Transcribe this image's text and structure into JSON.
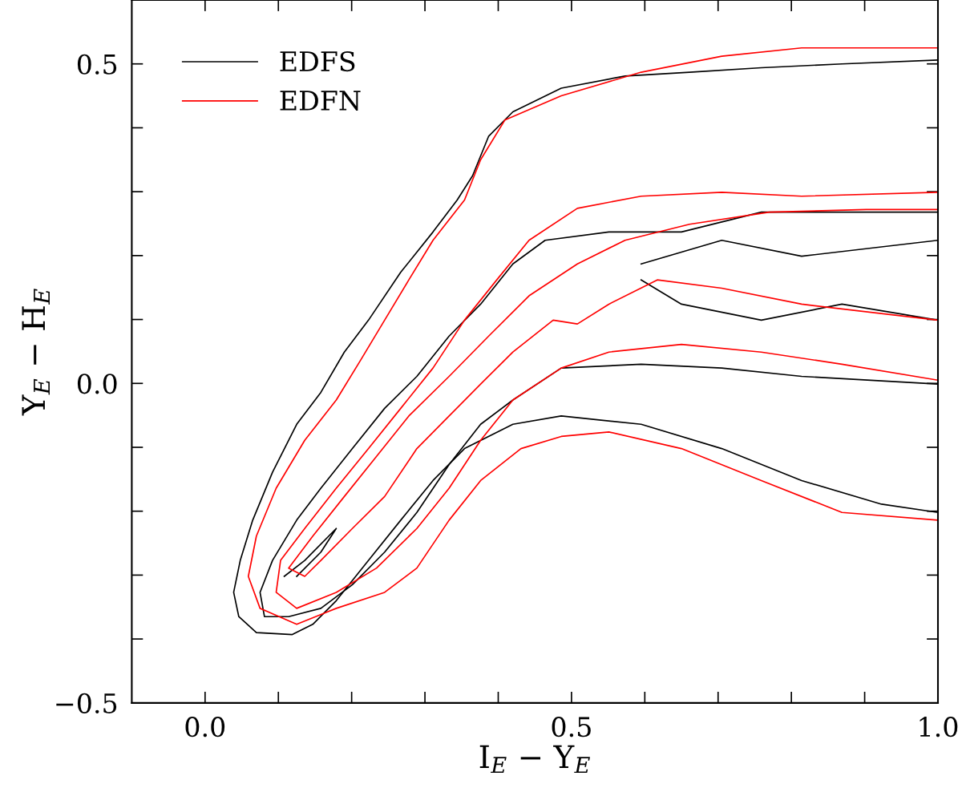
{
  "chart_data": {
    "type": "line",
    "xlabel": "I$_{E}$ − Y$_{E}$",
    "ylabel": "Y$_{E}$ − H$_{E}$",
    "xlim": [
      -0.1,
      1.0
    ],
    "ylim": [
      -0.5,
      0.6
    ],
    "xticks": [
      {
        "value": 0.0,
        "label": "0.0"
      },
      {
        "value": 0.1,
        "label": null
      },
      {
        "value": 0.2,
        "label": null
      },
      {
        "value": 0.3,
        "label": null
      },
      {
        "value": 0.4,
        "label": null
      },
      {
        "value": 0.5,
        "label": "0.5"
      },
      {
        "value": 0.6,
        "label": null
      },
      {
        "value": 0.7,
        "label": null
      },
      {
        "value": 0.8,
        "label": null
      },
      {
        "value": 0.9,
        "label": null
      },
      {
        "value": 1.0,
        "label": "1.0"
      }
    ],
    "yticks": [
      {
        "value": -0.5,
        "label": "−0.5"
      },
      {
        "value": -0.4,
        "label": null
      },
      {
        "value": -0.3,
        "label": null
      },
      {
        "value": -0.2,
        "label": null
      },
      {
        "value": -0.1,
        "label": null
      },
      {
        "value": 0.0,
        "label": "0.0"
      },
      {
        "value": 0.1,
        "label": null
      },
      {
        "value": 0.2,
        "label": null
      },
      {
        "value": 0.3,
        "label": null
      },
      {
        "value": 0.4,
        "label": null
      },
      {
        "value": 0.5,
        "label": "0.5"
      }
    ],
    "grid": false,
    "legend": "top left",
    "marker": "none",
    "line_style": "solid",
    "series": [
      {
        "name": "EDFS",
        "color": "#000000",
        "x": [
          1.0,
          0.923,
          0.814,
          0.705,
          0.595,
          0.486,
          0.42,
          0.354,
          0.311,
          0.267,
          0.223,
          0.179,
          0.147,
          0.119,
          0.07,
          0.046,
          0.039,
          0.048,
          0.065,
          0.092,
          0.125,
          0.158,
          0.19,
          0.223,
          0.267,
          0.311,
          0.344,
          0.365,
          0.387,
          0.42,
          0.486,
          0.573,
          0.661,
          0.759,
          0.869,
          1.0
        ],
        "values": [
          -0.202,
          -0.189,
          -0.152,
          -0.102,
          -0.064,
          -0.051,
          -0.064,
          -0.102,
          -0.152,
          -0.214,
          -0.277,
          -0.34,
          -0.377,
          -0.393,
          -0.39,
          -0.365,
          -0.327,
          -0.277,
          -0.214,
          -0.139,
          -0.064,
          -0.014,
          0.049,
          0.099,
          0.174,
          0.237,
          0.287,
          0.325,
          0.387,
          0.425,
          0.462,
          0.481,
          0.487,
          0.494,
          0.5,
          0.506
        ]
      },
      {
        "color": "#000000",
        "x": [
          1.0,
          0.814,
          0.705,
          0.595,
          0.486,
          0.42,
          0.376,
          0.333,
          0.289,
          0.245,
          0.201,
          0.158,
          0.114,
          0.081,
          0.075,
          0.092,
          0.125,
          0.158,
          0.201,
          0.245,
          0.289,
          0.333,
          0.376,
          0.42,
          0.464,
          0.551,
          0.65,
          0.759,
          0.869,
          1.0
        ],
        "values": [
          -0.001,
          0.011,
          0.024,
          0.03,
          0.024,
          -0.026,
          -0.064,
          -0.127,
          -0.202,
          -0.264,
          -0.315,
          -0.352,
          -0.365,
          -0.365,
          -0.327,
          -0.277,
          -0.214,
          -0.164,
          -0.102,
          -0.039,
          0.011,
          0.074,
          0.124,
          0.187,
          0.224,
          0.237,
          0.237,
          0.268,
          0.268,
          0.268
        ]
      },
      {
        "color": "#000000",
        "x": [
          0.108,
          0.136,
          0.179,
          0.158,
          0.125
        ],
        "values": [
          -0.302,
          -0.277,
          -0.227,
          -0.264,
          -0.302
        ]
      },
      {
        "color": "#000000",
        "x": [
          0.595,
          0.705,
          0.814,
          1.0,
          1.0,
          0.869,
          0.759,
          0.65,
          0.595
        ],
        "values": [
          0.187,
          0.224,
          0.199,
          0.224,
          0.099,
          0.124,
          0.099,
          0.124,
          0.162
        ]
      },
      {
        "name": "EDFN",
        "color": "#ff0000",
        "x": [
          1.0,
          0.869,
          0.759,
          0.65,
          0.551,
          0.486,
          0.431,
          0.376,
          0.333,
          0.289,
          0.245,
          0.179,
          0.125,
          0.075,
          0.059,
          0.07,
          0.097,
          0.136,
          0.179,
          0.212,
          0.245,
          0.278,
          0.311,
          0.354,
          0.376,
          0.409,
          0.486,
          0.595,
          0.705,
          0.814,
          1.0
        ],
        "values": [
          -0.214,
          -0.202,
          -0.152,
          -0.102,
          -0.076,
          -0.083,
          -0.102,
          -0.152,
          -0.214,
          -0.289,
          -0.327,
          -0.352,
          -0.377,
          -0.352,
          -0.302,
          -0.239,
          -0.164,
          -0.089,
          -0.026,
          0.036,
          0.099,
          0.162,
          0.224,
          0.287,
          0.35,
          0.412,
          0.45,
          0.487,
          0.512,
          0.525,
          0.525
        ]
      },
      {
        "color": "#ff0000",
        "x": [
          1.0,
          0.869,
          0.759,
          0.65,
          0.551,
          0.486,
          0.42,
          0.376,
          0.333,
          0.289,
          0.234,
          0.179,
          0.125,
          0.097,
          0.103,
          0.136,
          0.179,
          0.223,
          0.267,
          0.311,
          0.354,
          0.398,
          0.442,
          0.508,
          0.595,
          0.705,
          0.814,
          1.0
        ],
        "values": [
          0.005,
          0.03,
          0.049,
          0.061,
          0.049,
          0.024,
          -0.026,
          -0.089,
          -0.164,
          -0.227,
          -0.289,
          -0.327,
          -0.352,
          -0.327,
          -0.277,
          -0.227,
          -0.164,
          -0.102,
          -0.039,
          0.024,
          0.099,
          0.162,
          0.224,
          0.274,
          0.293,
          0.299,
          0.293,
          0.299
        ]
      },
      {
        "color": "#ff0000",
        "x": [
          1.0,
          0.814,
          0.705,
          0.617,
          0.551,
          0.508,
          0.475,
          0.42,
          0.376,
          0.333,
          0.289,
          0.245,
          0.201,
          0.158,
          0.136,
          0.114,
          0.147,
          0.19,
          0.234,
          0.278,
          0.333,
          0.387,
          0.442,
          0.508,
          0.573,
          0.661,
          0.77,
          0.902,
          1.0
        ],
        "values": [
          0.099,
          0.124,
          0.149,
          0.162,
          0.124,
          0.093,
          0.099,
          0.049,
          -0.001,
          -0.051,
          -0.102,
          -0.177,
          -0.227,
          -0.277,
          -0.302,
          -0.289,
          -0.239,
          -0.177,
          -0.114,
          -0.051,
          0.011,
          0.074,
          0.137,
          0.187,
          0.224,
          0.249,
          0.268,
          0.272,
          0.272
        ]
      }
    ]
  }
}
